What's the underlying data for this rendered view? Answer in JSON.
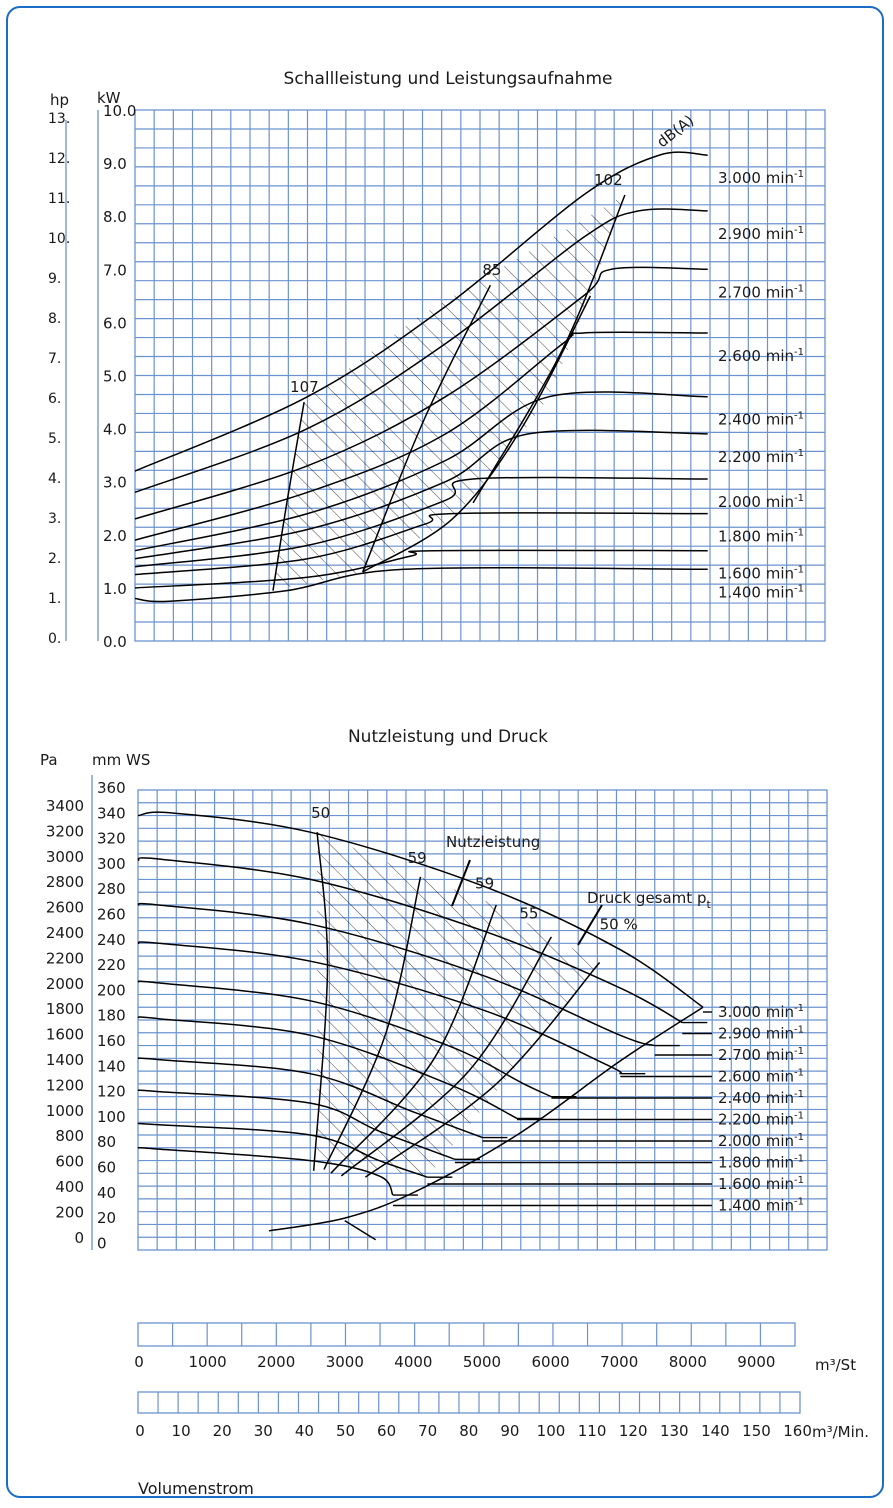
{
  "colors": {
    "frame": "#1b6cc4",
    "grid": "#6b93cf",
    "curve": "#000000"
  },
  "chart_data": [
    {
      "type": "line",
      "title": "Schallleistung und Leistungsaufnahme",
      "ylabel_left": "hp",
      "ylabel": "kW",
      "hp_ticks": [
        "13.",
        "12.",
        "11.",
        "10.",
        "9.",
        "8.",
        "7.",
        "6.",
        "5.",
        "4.",
        "3.",
        "2.",
        "1.",
        "0."
      ],
      "y_ticks": [
        "10.0",
        "9.0",
        "8.0",
        "7.0",
        "6.0",
        "5.0",
        "4.0",
        "3.0",
        "2.0",
        "1.0",
        "0.0"
      ],
      "ylim": [
        0,
        10
      ],
      "xlim": [
        0,
        10000
      ],
      "series": [
        {
          "name": "3.000 min-1",
          "x": [
            0,
            2500,
            4500,
            6500,
            7600,
            8300
          ],
          "y": [
            3.2,
            4.6,
            6.3,
            8.4,
            9.15,
            9.15
          ]
        },
        {
          "name": "2.900 min-1",
          "x": [
            0,
            2500,
            4500,
            6500,
            7300,
            8300
          ],
          "y": [
            2.8,
            4.0,
            5.6,
            7.6,
            8.1,
            8.1
          ]
        },
        {
          "name": "2.700 min-1",
          "x": [
            0,
            2500,
            4500,
            6500,
            6900,
            8300
          ],
          "y": [
            2.3,
            3.3,
            4.6,
            6.5,
            7.0,
            7.0
          ]
        },
        {
          "name": "2.600 min-1",
          "x": [
            0,
            2500,
            4500,
            6200,
            6500,
            8300
          ],
          "y": [
            1.9,
            2.8,
            3.9,
            5.6,
            5.8,
            5.8
          ]
        },
        {
          "name": "2.400 min-1",
          "x": [
            0,
            2500,
            4500,
            6000,
            8300
          ],
          "y": [
            1.7,
            2.4,
            3.4,
            4.6,
            4.6
          ]
        },
        {
          "name": "2.200 min-1",
          "x": [
            0,
            2500,
            4500,
            5700,
            8300
          ],
          "y": [
            1.55,
            2.1,
            3.0,
            3.9,
            3.9
          ]
        },
        {
          "name": "2.000 min-1",
          "x": [
            0,
            2500,
            4500,
            4900,
            8300
          ],
          "y": [
            1.4,
            1.8,
            2.65,
            3.05,
            3.05
          ]
        },
        {
          "name": "1.800 min-1",
          "x": [
            0,
            2500,
            4200,
            4600,
            8300
          ],
          "y": [
            1.25,
            1.55,
            2.2,
            2.4,
            2.4
          ]
        },
        {
          "name": "1.600 min-1",
          "x": [
            0,
            2500,
            4000,
            4300,
            8300
          ],
          "y": [
            1.0,
            1.2,
            1.6,
            1.7,
            1.7
          ]
        },
        {
          "name": "1.400 min-1",
          "x": [
            0,
            500,
            2200,
            3900,
            8300
          ],
          "y": [
            0.8,
            0.75,
            0.95,
            1.35,
            1.35
          ]
        }
      ],
      "annotations": [
        "107",
        "85",
        "102",
        "dB(A)"
      ],
      "speed_labels": [
        "3.000 min",
        "2.900 min",
        "2.700 min",
        "2.600 min",
        "2.400 min",
        "2.200 min",
        "2.000 min",
        "1.800 min",
        "1.600 min",
        "1.400 min"
      ],
      "superscript": "-1"
    },
    {
      "type": "line",
      "title": "Nutzleistung und Druck",
      "ylabel_left": "Pa",
      "ylabel": "mm WS",
      "pa_ticks": [
        "3400",
        "3200",
        "3000",
        "2800",
        "2600",
        "2400",
        "2200",
        "2000",
        "1800",
        "1600",
        "1400",
        "1200",
        "1000",
        "800",
        "600",
        "400",
        "200",
        "0"
      ],
      "y_ticks": [
        "360",
        "340",
        "320",
        "300",
        "280",
        "260",
        "240",
        "220",
        "200",
        "180",
        "160",
        "140",
        "120",
        "100",
        "80",
        "60",
        "40",
        "20",
        "0"
      ],
      "ylim": [
        0,
        360
      ],
      "xlim": [
        0,
        10000
      ],
      "series": [
        {
          "name": "3.000 min-1",
          "x": [
            0,
            500,
            2500,
            5000,
            7000,
            8200
          ],
          "y": [
            340,
            342,
            327,
            285,
            235,
            190
          ]
        },
        {
          "name": "2.900 min-1",
          "x": [
            0,
            300,
            2500,
            5000,
            7000,
            7900
          ],
          "y": [
            305,
            306,
            290,
            250,
            205,
            178
          ]
        },
        {
          "name": "2.700 min-1",
          "x": [
            0,
            300,
            2500,
            5000,
            7000,
            7500
          ],
          "y": [
            270,
            270,
            255,
            215,
            168,
            160
          ]
        },
        {
          "name": "2.600 min-1",
          "x": [
            0,
            300,
            2500,
            5000,
            6800,
            7000
          ],
          "y": [
            240,
            240,
            226,
            188,
            145,
            138
          ]
        },
        {
          "name": "2.400 min-1",
          "x": [
            0,
            300,
            2500,
            4500,
            5600,
            6000
          ],
          "y": [
            210,
            209,
            195,
            160,
            130,
            120
          ]
        },
        {
          "name": "2.200 min-1",
          "x": [
            0,
            300,
            2500,
            4500,
            5500
          ],
          "y": [
            182,
            181,
            168,
            130,
            103
          ]
        },
        {
          "name": "2.000 min-1",
          "x": [
            0,
            300,
            2500,
            4000,
            5000
          ],
          "y": [
            150,
            149,
            138,
            108,
            88
          ]
        },
        {
          "name": "1.800 min-1",
          "x": [
            0,
            300,
            2500,
            3500,
            4600
          ],
          "y": [
            125,
            124,
            115,
            93,
            71
          ]
        },
        {
          "name": "1.600 min-1",
          "x": [
            0,
            300,
            2500,
            3500,
            4200
          ],
          "y": [
            99,
            98,
            90,
            70,
            57
          ]
        },
        {
          "name": "1.400 min-1",
          "x": [
            0,
            300,
            2500,
            3500,
            3700
          ],
          "y": [
            80,
            79,
            70,
            58,
            43
          ]
        }
      ],
      "annotations": [
        "50",
        "59",
        "59",
        "55",
        "50 %",
        "Nutzleistung",
        "Druck gesamt p",
        "t"
      ],
      "speed_labels": [
        "3.000 min",
        "2.900 min",
        "2.700 min",
        "2.600 min",
        "2.400 min",
        "2.200 min",
        "2.000 min",
        "1.800 min",
        "1.600 min",
        "1.400 min"
      ],
      "superscript": "-1"
    }
  ],
  "axis_m3st": {
    "label": "m³/St",
    "ticks": [
      "0",
      "1000",
      "2000",
      "3000",
      "4000",
      "5000",
      "6000",
      "7000",
      "8000",
      "9000"
    ]
  },
  "axis_m3min": {
    "label": "m³/Min.",
    "ticks": [
      "0",
      "10",
      "20",
      "30",
      "40",
      "50",
      "60",
      "70",
      "80",
      "90",
      "100",
      "110",
      "120",
      "130",
      "140",
      "150",
      "160"
    ]
  },
  "xlabel": "Volumenstrom"
}
